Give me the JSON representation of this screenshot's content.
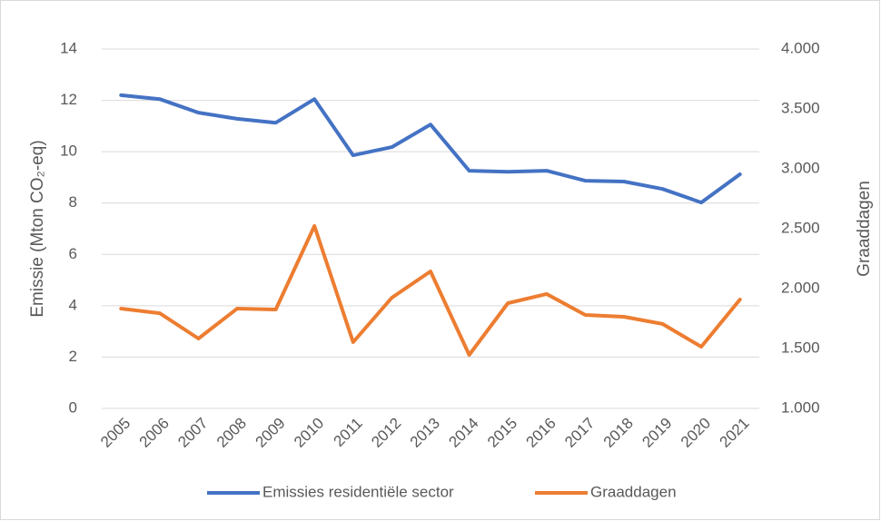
{
  "chart_data": {
    "type": "line",
    "categories": [
      "2005",
      "2006",
      "2007",
      "2008",
      "2009",
      "2010",
      "2011",
      "2012",
      "2013",
      "2014",
      "2015",
      "2016",
      "2017",
      "2018",
      "2019",
      "2020",
      "2021"
    ],
    "series": [
      {
        "name": "Emissies residentiële sector",
        "color": "#4472c4",
        "axis": "y",
        "values": [
          12.2,
          12.05,
          11.52,
          11.28,
          11.13,
          12.05,
          9.86,
          10.18,
          11.06,
          9.26,
          9.22,
          9.26,
          8.87,
          8.84,
          8.55,
          8.02,
          9.12
        ]
      },
      {
        "name": "Graaddagen",
        "color": "#ed7d31",
        "axis": "y2",
        "values": [
          1833,
          1795,
          1583,
          1833,
          1826,
          2523,
          1553,
          1924,
          2144,
          1447,
          1879,
          1955,
          1780,
          1765,
          1705,
          1515,
          1909
        ]
      }
    ],
    "ylabel": "Emissie (Mton CO₂-eq)",
    "y2label": "Graaddagen",
    "ylim": [
      0,
      14
    ],
    "yticks": [
      0,
      2,
      4,
      6,
      8,
      10,
      12,
      14
    ],
    "y2lim": [
      1000,
      4000
    ],
    "y2ticks": [
      {
        "value": 1000,
        "label": "1.000"
      },
      {
        "value": 1500,
        "label": "1.500"
      },
      {
        "value": 2000,
        "label": "2.000"
      },
      {
        "value": 2500,
        "label": "2.500"
      },
      {
        "value": 3000,
        "label": "3.000"
      },
      {
        "value": 3500,
        "label": "3.500"
      },
      {
        "value": 4000,
        "label": "4.000"
      }
    ],
    "grid": true,
    "legend": "bottom"
  }
}
